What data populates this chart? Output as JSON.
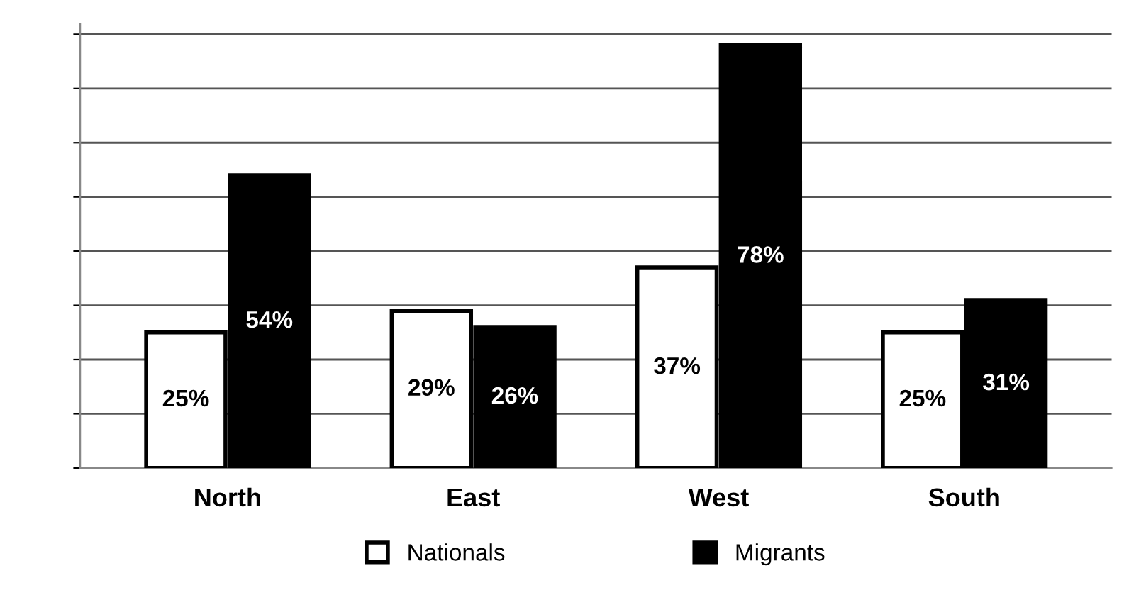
{
  "chart_data": {
    "type": "bar",
    "categories": [
      "North",
      "East",
      "West",
      "South"
    ],
    "series": [
      {
        "name": "Nationals",
        "color": "#ffffff",
        "values": [
          25,
          29,
          37,
          25
        ],
        "value_labels": [
          "25%",
          "29%",
          "37%",
          "25%"
        ]
      },
      {
        "name": "Migrants",
        "color": "#000000",
        "values": [
          54,
          26,
          78,
          31
        ],
        "value_labels": [
          "54%",
          "26%",
          "78%",
          "31%"
        ]
      }
    ],
    "tick_labels": "x",
    "grid": "y",
    "legend": "bottom"
  }
}
